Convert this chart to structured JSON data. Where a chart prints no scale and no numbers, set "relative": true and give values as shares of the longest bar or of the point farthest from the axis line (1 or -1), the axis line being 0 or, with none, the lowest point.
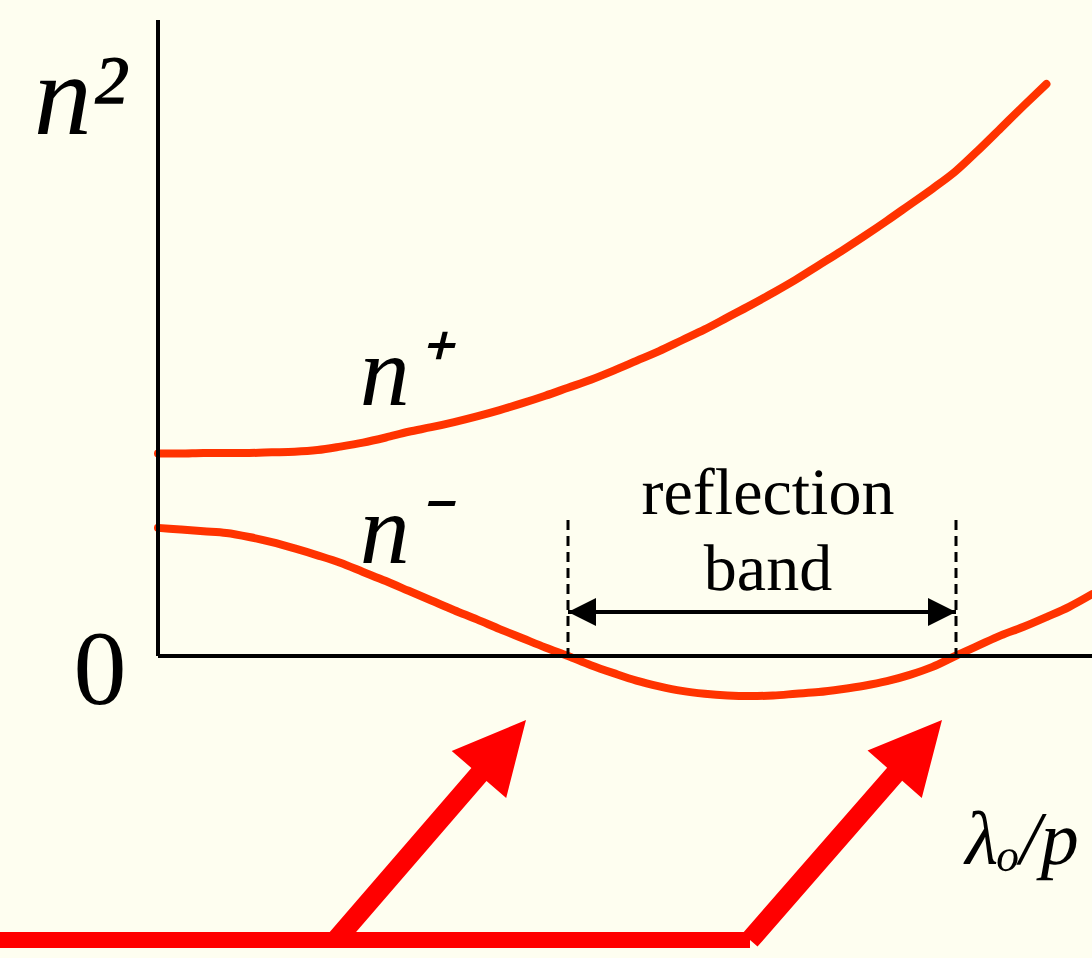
{
  "chart_data": {
    "type": "line",
    "xlabel": "λₒ/p",
    "ylabel": "n²",
    "relative": true,
    "categories": [
      null,
      null,
      null,
      null,
      null,
      null,
      null,
      null,
      null,
      null,
      null,
      null,
      null,
      null,
      null,
      null,
      null,
      null,
      null,
      null,
      null,
      null,
      null,
      null,
      null,
      null,
      null,
      null,
      null,
      null,
      null,
      null,
      null,
      null,
      null,
      null,
      null,
      null,
      null,
      null,
      null,
      null
    ],
    "series": [
      {
        "name": "n⁺",
        "color": "#ff3300",
        "values": [
          0.354,
          0.354,
          0.355,
          0.355,
          0.355,
          0.356,
          0.357,
          0.36,
          0.366,
          0.373,
          0.382,
          0.392,
          0.4,
          0.409,
          0.419,
          0.43,
          0.442,
          0.455,
          0.469,
          0.483,
          0.499,
          0.516,
          0.533,
          0.552,
          0.571,
          0.592,
          0.613,
          0.635,
          0.658,
          0.683,
          0.708,
          0.734,
          0.761,
          0.789,
          0.817,
          0.847,
          0.884,
          0.923,
          0.962,
          1.0,
          null,
          null
        ]
      },
      {
        "name": "n⁻",
        "color": "#ff3300",
        "values": [
          0.224,
          0.221,
          0.218,
          0.215,
          0.208,
          0.199,
          0.188,
          0.176,
          0.163,
          0.147,
          0.131,
          0.114,
          0.097,
          0.08,
          0.064,
          0.047,
          0.031,
          0.015,
          0,
          -0.016,
          -0.03,
          -0.043,
          -0.053,
          -0.061,
          -0.066,
          -0.069,
          -0.07,
          -0.069,
          -0.066,
          -0.063,
          -0.058,
          -0.052,
          -0.044,
          -0.033,
          -0.019,
          0,
          0.018,
          0.036,
          0.051,
          0.068,
          0.086,
          0.108
        ]
      }
    ],
    "annotations": [
      "0",
      "reflection band"
    ]
  }
}
